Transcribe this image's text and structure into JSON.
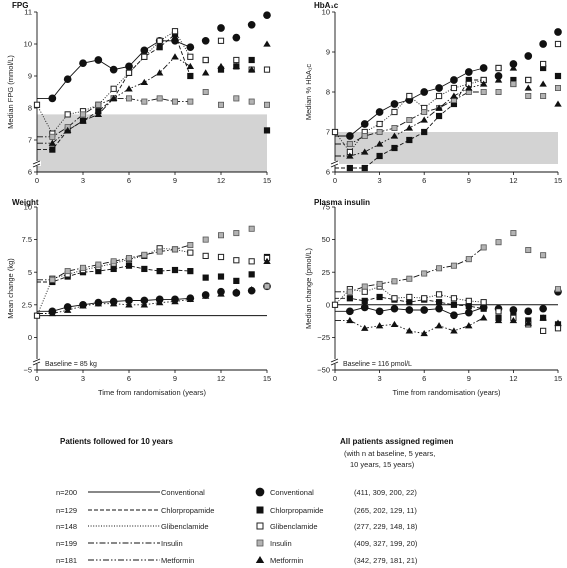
{
  "chart_data": [
    {
      "type": "scatter",
      "title": "FPG",
      "ylabel": "Median FPG (mmol/L)",
      "xlabel": "",
      "ylim": [
        6,
        11
      ],
      "xlim": [
        0,
        15
      ],
      "yticks": [
        "6",
        "7",
        "8",
        "9",
        "10",
        "11"
      ],
      "xticks": [
        "0",
        "3",
        "6",
        "9",
        "12",
        "15"
      ],
      "axis_break": true,
      "shaded_band": [
        6,
        7.8
      ],
      "baseline_note": "",
      "series": [
        {
          "name": "Conventional",
          "marker": "filled-circle",
          "x": [
            1,
            2,
            3,
            4,
            5,
            6,
            7,
            8,
            9,
            10,
            11,
            12,
            13,
            14,
            15
          ],
          "y": [
            8.3,
            8.9,
            9.4,
            9.5,
            9.2,
            9.3,
            9.8,
            10.1,
            10.1,
            9.9,
            10.1,
            10.5,
            10.2,
            10.6,
            10.9
          ]
        },
        {
          "name": "Chlorpropamide",
          "marker": "filled-square",
          "x": [
            1,
            2,
            3,
            4,
            5,
            6,
            7,
            8,
            9,
            10,
            11,
            12,
            13,
            14,
            15
          ],
          "y": [
            6.7,
            7.3,
            7.6,
            7.9,
            8.3,
            9.1,
            9.6,
            9.9,
            10.3,
            9.0,
            9.5,
            9.2,
            9.3,
            9.5,
            7.3
          ]
        },
        {
          "name": "Glibenclamide",
          "marker": "open-square",
          "x": [
            0,
            1,
            2,
            3,
            4,
            5,
            6,
            7,
            8,
            9,
            10,
            11,
            12,
            13,
            14,
            15
          ],
          "y": [
            8.1,
            7.2,
            7.8,
            7.9,
            8.1,
            8.6,
            9.1,
            9.6,
            10.1,
            10.4,
            9.6,
            9.5,
            10.1,
            9.5,
            9.2,
            9.2
          ]
        },
        {
          "name": "Insulin",
          "marker": "grey-square",
          "x": [
            1,
            2,
            3,
            4,
            5,
            6,
            7,
            8,
            9,
            10,
            11,
            12,
            13,
            14,
            15
          ],
          "y": [
            7.1,
            7.4,
            7.8,
            8.1,
            8.3,
            8.3,
            8.2,
            8.3,
            8.2,
            8.2,
            8.5,
            8.1,
            8.3,
            8.2,
            8.1
          ]
        },
        {
          "name": "Metformin",
          "marker": "filled-triangle",
          "x": [
            1,
            2,
            3,
            4,
            5,
            6,
            7,
            8,
            9,
            10,
            11,
            12,
            13,
            14,
            15
          ],
          "y": [
            6.9,
            7.3,
            7.6,
            7.8,
            8.3,
            8.6,
            8.8,
            9.1,
            9.6,
            9.3,
            9.1,
            9.3,
            9.3,
            9.2,
            10.0
          ]
        }
      ]
    },
    {
      "type": "scatter",
      "title": "HbA₁c",
      "ylabel": "Median % HbA₁c",
      "xlabel": "",
      "ylim": [
        6,
        10
      ],
      "xlim": [
        0,
        15
      ],
      "yticks": [
        "6",
        "7",
        "8",
        "9",
        "10"
      ],
      "xticks": [
        "0",
        "3",
        "6",
        "9",
        "12",
        "15"
      ],
      "axis_break": true,
      "shaded_band": [
        6.2,
        7.0
      ],
      "baseline_note": "",
      "series": [
        {
          "name": "Conventional",
          "marker": "filled-circle",
          "x": [
            1,
            2,
            3,
            4,
            5,
            6,
            7,
            8,
            9,
            10,
            11,
            12,
            13,
            14,
            15
          ],
          "y": [
            6.9,
            7.2,
            7.5,
            7.7,
            7.8,
            8.0,
            8.1,
            8.3,
            8.5,
            8.6,
            8.4,
            8.7,
            8.9,
            9.2,
            9.5
          ]
        },
        {
          "name": "Chlorpropamide",
          "marker": "filled-square",
          "x": [
            1,
            2,
            3,
            4,
            5,
            6,
            7,
            8,
            9,
            10,
            11,
            12,
            13,
            14,
            15
          ],
          "y": [
            6.1,
            6.1,
            6.4,
            6.6,
            6.8,
            7.0,
            7.4,
            7.7,
            8.3,
            8.3,
            8.6,
            8.3,
            8.3,
            8.6,
            8.4
          ]
        },
        {
          "name": "Glibenclamide",
          "marker": "open-square",
          "x": [
            0,
            1,
            2,
            3,
            4,
            5,
            6,
            7,
            8,
            9,
            10,
            11,
            12,
            13,
            14,
            15
          ],
          "y": [
            7.0,
            6.5,
            7.0,
            7.2,
            7.5,
            7.9,
            7.6,
            7.9,
            8.1,
            8.2,
            8.3,
            8.6,
            8.2,
            8.3,
            8.7,
            9.2
          ]
        },
        {
          "name": "Insulin",
          "marker": "grey-square",
          "x": [
            1,
            2,
            3,
            4,
            5,
            6,
            7,
            8,
            9,
            10,
            11,
            12,
            13,
            14,
            15
          ],
          "y": [
            6.7,
            6.9,
            7.0,
            7.1,
            7.3,
            7.5,
            7.6,
            7.8,
            8.0,
            8.0,
            8.0,
            8.2,
            7.9,
            7.9,
            8.1
          ]
        },
        {
          "name": "Metformin",
          "marker": "filled-triangle",
          "x": [
            1,
            2,
            3,
            4,
            5,
            6,
            7,
            8,
            9,
            10,
            11,
            12,
            13,
            14,
            15
          ],
          "y": [
            6.4,
            6.5,
            6.7,
            6.9,
            7.1,
            7.3,
            7.6,
            7.9,
            8.1,
            8.2,
            8.3,
            8.6,
            8.1,
            8.2,
            7.7
          ]
        }
      ]
    },
    {
      "type": "scatter",
      "title": "Weight",
      "ylabel": "Mean change (kg)",
      "xlabel": "Time from randomisation (years)",
      "ylim": [
        -5,
        10
      ],
      "xlim": [
        0,
        15
      ],
      "yticks": [
        "−5",
        "0",
        "2.5",
        "5",
        "7.5",
        "10"
      ],
      "xticks": [
        "0",
        "3",
        "6",
        "9",
        "12",
        "15"
      ],
      "axis_break": true,
      "shaded_band": null,
      "baseline_note": "Baseline = 85 kg",
      "series": [
        {
          "name": "Conventional",
          "marker": "filled-circle",
          "x": [
            1,
            2,
            3,
            4,
            5,
            6,
            7,
            8,
            9,
            10,
            11,
            12,
            13,
            14,
            15
          ],
          "y": [
            0.4,
            0.8,
            1.0,
            1.2,
            1.3,
            1.4,
            1.4,
            1.5,
            1.5,
            1.6,
            1.9,
            2.2,
            2.1,
            2.3,
            2.7
          ]
        },
        {
          "name": "Chlorpropamide",
          "marker": "filled-square",
          "x": [
            1,
            2,
            3,
            4,
            5,
            6,
            7,
            8,
            9,
            10,
            11,
            12,
            13,
            14,
            15
          ],
          "y": [
            3.1,
            3.6,
            4.0,
            4.1,
            4.3,
            4.6,
            4.3,
            4.1,
            4.2,
            4.1,
            3.5,
            3.6,
            3.2,
            3.8,
            5.4
          ]
        },
        {
          "name": "Glibenclamide",
          "marker": "open-square",
          "x": [
            0,
            1,
            2,
            3,
            4,
            5,
            6,
            7,
            8,
            9,
            10,
            11,
            12,
            13,
            14,
            15
          ],
          "y": [
            0,
            3.4,
            3.8,
            4.2,
            4.5,
            4.8,
            5.2,
            5.5,
            6.2,
            6.1,
            5.8,
            5.5,
            5.4,
            5.1,
            5.0,
            5.3
          ]
        },
        {
          "name": "Insulin",
          "marker": "grey-square",
          "x": [
            1,
            2,
            3,
            4,
            5,
            6,
            7,
            8,
            9,
            10,
            11,
            12,
            13,
            14,
            15
          ],
          "y": [
            3.3,
            4.1,
            4.4,
            4.7,
            5.0,
            5.3,
            5.6,
            5.9,
            6.1,
            6.5,
            7.0,
            7.4,
            7.6,
            8.0,
            2.7
          ]
        },
        {
          "name": "Metformin",
          "marker": "filled-triangle",
          "x": [
            1,
            2,
            3,
            4,
            5,
            6,
            7,
            8,
            9,
            10,
            11,
            12,
            13,
            14,
            15
          ],
          "y": [
            0.2,
            0.5,
            0.9,
            1.1,
            1.1,
            1.0,
            1.0,
            1.2,
            1.3,
            1.5,
            1.8,
            2.0,
            2.2,
            2.4,
            5.0
          ]
        }
      ]
    },
    {
      "type": "scatter",
      "title": "Plasma insulin",
      "ylabel": "Median change (pmol/L)",
      "xlabel": "Time from randomisation (years)",
      "ylim": [
        -50,
        75
      ],
      "xlim": [
        0,
        15
      ],
      "yticks": [
        "−50",
        "−25",
        "0",
        "25",
        "50",
        "75"
      ],
      "xticks": [
        "0",
        "3",
        "6",
        "9",
        "12",
        "15"
      ],
      "axis_break": true,
      "shaded_band": null,
      "baseline_note": "Baseline = 116 pmol/L",
      "series": [
        {
          "name": "Conventional",
          "marker": "filled-circle",
          "x": [
            1,
            2,
            3,
            4,
            5,
            6,
            7,
            8,
            9,
            10,
            11,
            12,
            13,
            14,
            15
          ],
          "y": [
            -5,
            -2,
            -5,
            -3,
            -4,
            -4,
            -3,
            -8,
            -6,
            -2,
            -3,
            -4,
            -5,
            -3,
            10
          ]
        },
        {
          "name": "Chlorpropamide",
          "marker": "filled-square",
          "x": [
            1,
            2,
            3,
            4,
            5,
            6,
            7,
            8,
            9,
            10,
            11,
            12,
            13,
            14,
            15
          ],
          "y": [
            5,
            3,
            6,
            4,
            2,
            4,
            2,
            0,
            -1,
            -3,
            -10,
            -8,
            -12,
            -10,
            -15
          ]
        },
        {
          "name": "Glibenclamide",
          "marker": "open-square",
          "x": [
            0,
            1,
            2,
            3,
            4,
            5,
            6,
            7,
            8,
            9,
            10,
            11,
            12,
            13,
            14,
            15
          ],
          "y": [
            0,
            12,
            10,
            14,
            5,
            6,
            5,
            8,
            5,
            3,
            2,
            -5,
            -10,
            -15,
            -20,
            -18
          ]
        },
        {
          "name": "Insulin",
          "marker": "grey-square",
          "x": [
            1,
            2,
            3,
            4,
            5,
            6,
            7,
            8,
            9,
            10,
            11,
            12,
            13,
            14,
            15
          ],
          "y": [
            10,
            14,
            16,
            18,
            20,
            24,
            28,
            30,
            35,
            44,
            48,
            55,
            42,
            38,
            12
          ]
        },
        {
          "name": "Metformin",
          "marker": "filled-triangle",
          "x": [
            1,
            2,
            3,
            4,
            5,
            6,
            7,
            8,
            9,
            10,
            11,
            12,
            13,
            14,
            15
          ],
          "y": [
            -12,
            -18,
            -16,
            -15,
            -20,
            -22,
            -16,
            -20,
            -16,
            -10,
            -12,
            -12,
            -14,
            -10,
            -14
          ]
        }
      ]
    }
  ],
  "legend": {
    "left_heading": "Patients followed for 10 years",
    "right_heading_line1": "All patients assigned regimen",
    "right_heading_line2": "(with n at baseline, 5 years,",
    "right_heading_line3": "10 years, 15 years)",
    "rows": [
      {
        "n": "n=200",
        "line_label": "Conventional",
        "marker_label": "Conventional",
        "counts": "(411, 309, 200, 22)",
        "line_style": "solid",
        "marker": "filled-circle"
      },
      {
        "n": "n=129",
        "line_label": "Chlorpropamide",
        "marker_label": "Chlorpropamide",
        "counts": "(265, 202, 129, 11)",
        "line_style": "dashed",
        "marker": "filled-square"
      },
      {
        "n": "n=148",
        "line_label": "Glibenclamide",
        "marker_label": "Glibenclamide",
        "counts": "(277, 229, 148, 18)",
        "line_style": "dotted",
        "marker": "open-square"
      },
      {
        "n": "n=199",
        "line_label": "Insulin",
        "marker_label": "Insulin",
        "counts": "(409, 327, 199, 20)",
        "line_style": "dashdot",
        "marker": "grey-square"
      },
      {
        "n": "n=181",
        "line_label": "Metformin",
        "marker_label": "Metformin",
        "counts": "(342, 279, 181, 21)",
        "line_style": "dashdotdot",
        "marker": "filled-triangle"
      }
    ]
  }
}
